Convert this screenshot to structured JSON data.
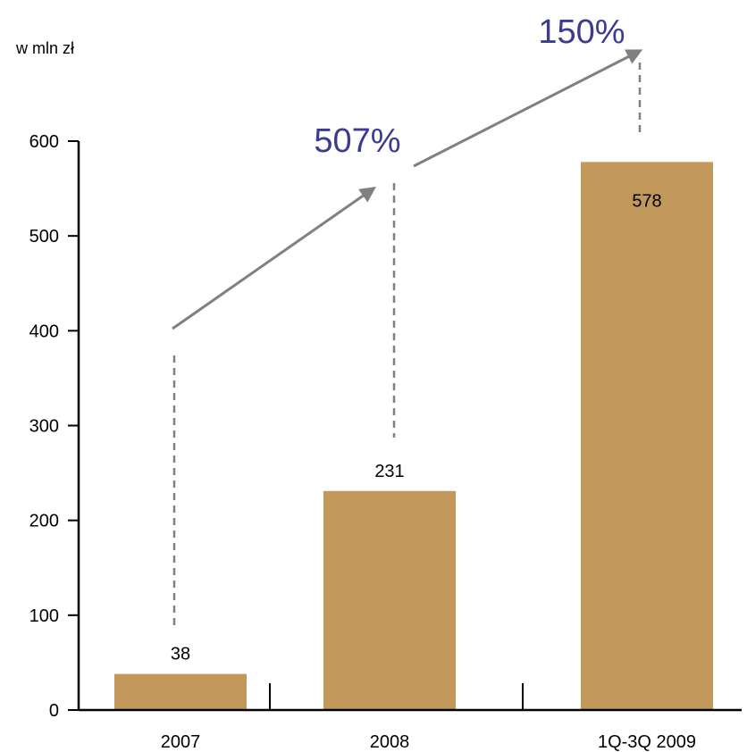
{
  "chart_data": {
    "type": "bar",
    "unit_label": "w mln zł",
    "categories": [
      "2007",
      "2008",
      "1Q-3Q 2009"
    ],
    "values": [
      38,
      231,
      578
    ],
    "data_labels": [
      "38",
      "231",
      "578"
    ],
    "ylim": [
      0,
      600
    ],
    "yticks": [
      "0",
      "100",
      "200",
      "300",
      "400",
      "500",
      "600"
    ],
    "growth_annotations": [
      {
        "from": "2007",
        "to": "2008",
        "label": "507%"
      },
      {
        "from": "2008",
        "to": "1Q-3Q 2009",
        "label": "150%"
      }
    ],
    "colors": {
      "bar": "#c1975a",
      "arrow": "#808080",
      "growth_text": "#3b3b8f"
    },
    "grid": false,
    "legend": "none"
  }
}
